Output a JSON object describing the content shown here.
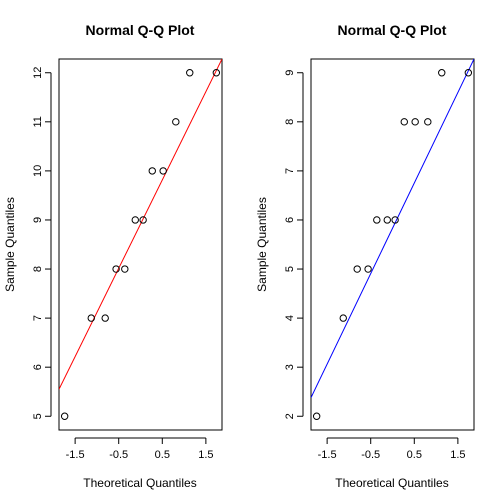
{
  "chart_data": [
    {
      "type": "scatter",
      "title": "Normal Q-Q Plot",
      "xlabel": "Theoretical Quantiles",
      "ylabel": "Sample Quantiles",
      "xlim": [
        -1.87,
        1.87
      ],
      "ylim": [
        4.72,
        12.28
      ],
      "xticks": [
        -1.5,
        -0.5,
        0.5,
        1.5
      ],
      "xtick_labels": [
        "-1.5",
        "-0.5",
        "0.5",
        "1.5"
      ],
      "yticks": [
        5,
        6,
        7,
        8,
        9,
        10,
        11,
        12
      ],
      "ytick_labels": [
        "5",
        "6",
        "7",
        "8",
        "9",
        "10",
        "11",
        "12"
      ],
      "points": [
        {
          "x": -1.74,
          "y": 5
        },
        {
          "x": -1.13,
          "y": 7
        },
        {
          "x": -0.81,
          "y": 7
        },
        {
          "x": -0.56,
          "y": 8
        },
        {
          "x": -0.36,
          "y": 8
        },
        {
          "x": -0.12,
          "y": 9
        },
        {
          "x": 0.06,
          "y": 9
        },
        {
          "x": 0.27,
          "y": 10
        },
        {
          "x": 0.52,
          "y": 10
        },
        {
          "x": 0.81,
          "y": 11
        },
        {
          "x": 1.13,
          "y": 12
        },
        {
          "x": 1.74,
          "y": 12
        }
      ],
      "reference_line": {
        "x1": -1.87,
        "y1": 5.55,
        "x2": 1.87,
        "y2": 12.28,
        "color": "#ff0000"
      }
    },
    {
      "type": "scatter",
      "title": "Normal Q-Q Plot",
      "xlabel": "Theoretical Quantiles",
      "ylabel": "Sample Quantiles",
      "xlim": [
        -1.87,
        1.87
      ],
      "ylim": [
        1.72,
        9.28
      ],
      "xticks": [
        -1.5,
        -0.5,
        0.5,
        1.5
      ],
      "xtick_labels": [
        "-1.5",
        "-0.5",
        "0.5",
        "1.5"
      ],
      "yticks": [
        2,
        3,
        4,
        5,
        6,
        7,
        8,
        9
      ],
      "ytick_labels": [
        "2",
        "3",
        "4",
        "5",
        "6",
        "7",
        "8",
        "9"
      ],
      "points": [
        {
          "x": -1.74,
          "y": 2
        },
        {
          "x": -1.13,
          "y": 4
        },
        {
          "x": -0.81,
          "y": 5
        },
        {
          "x": -0.56,
          "y": 5
        },
        {
          "x": -0.36,
          "y": 6
        },
        {
          "x": -0.12,
          "y": 6
        },
        {
          "x": 0.06,
          "y": 6
        },
        {
          "x": 0.27,
          "y": 8
        },
        {
          "x": 0.52,
          "y": 8
        },
        {
          "x": 0.81,
          "y": 8
        },
        {
          "x": 1.13,
          "y": 9
        },
        {
          "x": 1.74,
          "y": 9
        }
      ],
      "reference_line": {
        "x1": -1.87,
        "y1": 2.38,
        "x2": 1.87,
        "y2": 9.28,
        "color": "#0000ff"
      }
    }
  ]
}
